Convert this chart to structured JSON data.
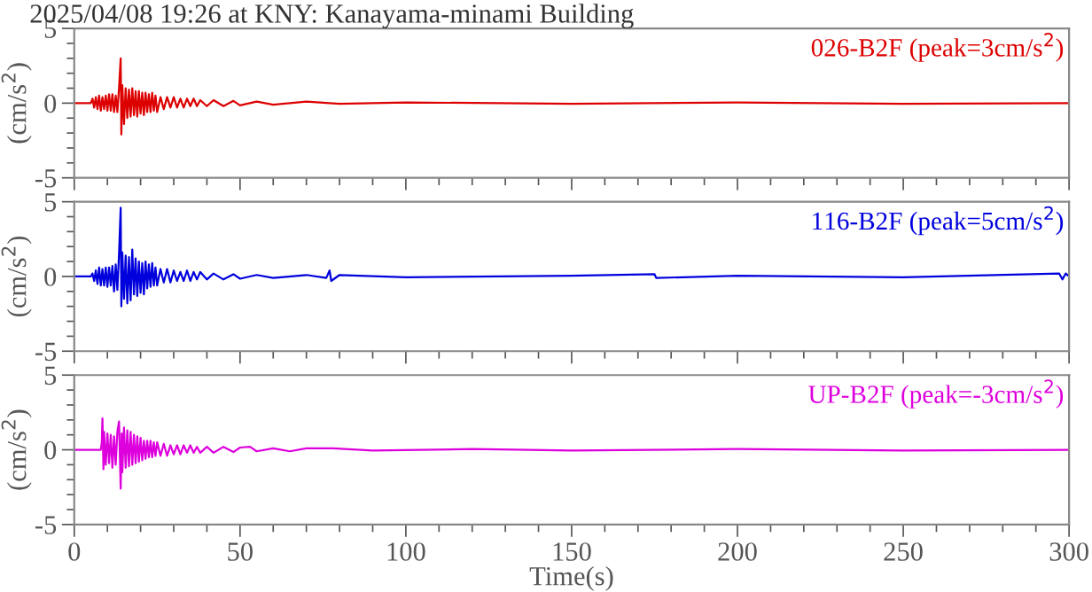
{
  "chart_data": [
    {
      "type": "line",
      "title": "2025/04/08 19:26 at KNY: Kanayama-minami Building",
      "ylabel": "(cm/s$^{2}$)",
      "xlim": [
        0,
        300
      ],
      "ylim": [
        -5,
        5
      ],
      "tick_labels": "y",
      "xticks": [
        0,
        {
          "value": 10,
          "label": null
        },
        {
          "value": 20,
          "label": null
        },
        {
          "value": 30,
          "label": null
        },
        {
          "value": 40,
          "label": null
        },
        50,
        {
          "value": 60,
          "label": null
        },
        {
          "value": 70,
          "label": null
        },
        {
          "value": 80,
          "label": null
        },
        {
          "value": 90,
          "label": null
        },
        100,
        {
          "value": 110,
          "label": null
        },
        {
          "value": 120,
          "label": null
        },
        {
          "value": 130,
          "label": null
        },
        {
          "value": 140,
          "label": null
        },
        150,
        {
          "value": 160,
          "label": null
        },
        {
          "value": 170,
          "label": null
        },
        {
          "value": 180,
          "label": null
        },
        {
          "value": 190,
          "label": null
        },
        200,
        {
          "value": 210,
          "label": null
        },
        {
          "value": 220,
          "label": null
        },
        {
          "value": 230,
          "label": null
        },
        {
          "value": 240,
          "label": null
        },
        250,
        {
          "value": 260,
          "label": null
        },
        {
          "value": 270,
          "label": null
        },
        {
          "value": 280,
          "label": null
        },
        {
          "value": 290,
          "label": null
        },
        300
      ],
      "yticks": [
        -5,
        {
          "value": -4,
          "label": null
        },
        {
          "value": -3,
          "label": null
        },
        {
          "value": -2,
          "label": null
        },
        {
          "value": -1,
          "label": null
        },
        0,
        {
          "value": 1,
          "label": null
        },
        {
          "value": 2,
          "label": null
        },
        {
          "value": 3,
          "label": null
        },
        {
          "value": 4,
          "label": null
        },
        5
      ],
      "series": [
        {
          "name": "026-B2F (peak=3cm/s$^{2}$)",
          "color": "#dd0000",
          "x": [
            0,
            5,
            5.5,
            6,
            6.5,
            7,
            7.5,
            8,
            8.5,
            9,
            9.5,
            10,
            10.5,
            11,
            11.5,
            12,
            12.5,
            13,
            13.5,
            14,
            14.2,
            14.5,
            15,
            15.5,
            16,
            16.5,
            17,
            17.5,
            18,
            18.5,
            19,
            19.5,
            20,
            20.5,
            21,
            21.5,
            22,
            22.5,
            23,
            23.5,
            24,
            24.5,
            25,
            26,
            27,
            28,
            29,
            30,
            31,
            32,
            33,
            34,
            35,
            36,
            37,
            38,
            40,
            42,
            45,
            48,
            50,
            55,
            60,
            70,
            80,
            100,
            150,
            200,
            250,
            300
          ],
          "values": [
            0,
            0,
            0.3,
            -0.3,
            0.4,
            -0.4,
            0.5,
            -0.5,
            0.4,
            -0.4,
            0.5,
            -0.5,
            0.6,
            -0.5,
            0.6,
            -0.6,
            0.5,
            -0.6,
            1.0,
            3.0,
            -2.1,
            1.2,
            -1.4,
            1.0,
            -1.0,
            0.9,
            -0.9,
            1.0,
            -0.8,
            0.8,
            -0.9,
            0.8,
            -0.7,
            0.7,
            -0.8,
            0.7,
            -0.6,
            0.6,
            -0.6,
            0.7,
            -0.5,
            0.5,
            -0.6,
            0.4,
            -0.4,
            0.4,
            -0.3,
            0.4,
            -0.3,
            0.3,
            -0.3,
            0.3,
            -0.2,
            0.3,
            -0.2,
            0.2,
            -0.2,
            0.2,
            -0.2,
            0.15,
            -0.15,
            0.1,
            -0.1,
            0.1,
            -0.05,
            0.05,
            -0.05,
            0.05,
            -0.05,
            0
          ]
        }
      ]
    },
    {
      "type": "line",
      "ylabel": "(cm/s$^{2}$)",
      "xlim": [
        0,
        300
      ],
      "ylim": [
        -5,
        5
      ],
      "tick_labels": "y",
      "xticks": [
        0,
        {
          "value": 10,
          "label": null
        },
        {
          "value": 20,
          "label": null
        },
        {
          "value": 30,
          "label": null
        },
        {
          "value": 40,
          "label": null
        },
        50,
        {
          "value": 60,
          "label": null
        },
        {
          "value": 70,
          "label": null
        },
        {
          "value": 80,
          "label": null
        },
        {
          "value": 90,
          "label": null
        },
        100,
        {
          "value": 110,
          "label": null
        },
        {
          "value": 120,
          "label": null
        },
        {
          "value": 130,
          "label": null
        },
        {
          "value": 140,
          "label": null
        },
        150,
        {
          "value": 160,
          "label": null
        },
        {
          "value": 170,
          "label": null
        },
        {
          "value": 180,
          "label": null
        },
        {
          "value": 190,
          "label": null
        },
        200,
        {
          "value": 210,
          "label": null
        },
        {
          "value": 220,
          "label": null
        },
        {
          "value": 230,
          "label": null
        },
        {
          "value": 240,
          "label": null
        },
        250,
        {
          "value": 260,
          "label": null
        },
        {
          "value": 270,
          "label": null
        },
        {
          "value": 280,
          "label": null
        },
        {
          "value": 290,
          "label": null
        },
        300
      ],
      "yticks": [
        -5,
        {
          "value": -4,
          "label": null
        },
        {
          "value": -3,
          "label": null
        },
        {
          "value": -2,
          "label": null
        },
        {
          "value": -1,
          "label": null
        },
        0,
        {
          "value": 1,
          "label": null
        },
        {
          "value": 2,
          "label": null
        },
        {
          "value": 3,
          "label": null
        },
        {
          "value": 4,
          "label": null
        },
        5
      ],
      "series": [
        {
          "name": "116-B2F (peak=5cm/s$^{2}$)",
          "color": "#0000dd",
          "x": [
            0,
            5,
            5.5,
            6,
            6.5,
            7,
            7.5,
            8,
            8.5,
            9,
            9.5,
            10,
            10.5,
            11,
            11.5,
            12,
            12.5,
            13,
            13.5,
            14,
            14.2,
            14.5,
            15,
            15.5,
            16,
            16.5,
            17,
            17.5,
            18,
            18.5,
            19,
            19.5,
            20,
            20.5,
            21,
            21.5,
            22,
            22.5,
            23,
            23.5,
            24,
            24.5,
            25,
            26,
            27,
            28,
            29,
            30,
            31,
            32,
            33,
            34,
            35,
            36,
            37,
            38,
            40,
            42,
            45,
            48,
            50,
            55,
            60,
            70,
            76,
            77,
            77.5,
            80,
            100,
            150,
            175,
            175.5,
            200,
            250,
            297,
            298,
            299,
            300
          ],
          "values": [
            0,
            0,
            0.2,
            -0.3,
            0.4,
            -0.5,
            0.6,
            -0.6,
            0.5,
            -0.6,
            0.6,
            -0.7,
            0.6,
            -0.6,
            0.7,
            -1.0,
            0.8,
            -0.9,
            1.5,
            4.6,
            -2.0,
            1.6,
            -1.5,
            1.4,
            -1.8,
            1.3,
            -1.6,
            1.8,
            -1.2,
            1.2,
            -1.3,
            1.0,
            -1.1,
            0.9,
            -1.2,
            1.0,
            -0.8,
            0.8,
            -0.7,
            0.9,
            -0.6,
            0.6,
            -0.6,
            0.5,
            -0.4,
            0.5,
            -0.4,
            0.4,
            -0.3,
            0.3,
            -0.3,
            0.4,
            -0.3,
            0.3,
            -0.2,
            0.3,
            -0.2,
            0.2,
            -0.2,
            0.15,
            -0.15,
            0.1,
            -0.1,
            0.1,
            -0.1,
            0.4,
            -0.3,
            0.1,
            -0.05,
            0.05,
            0.15,
            -0.1,
            0.05,
            -0.05,
            0.2,
            -0.2,
            0.2,
            0
          ]
        }
      ]
    },
    {
      "type": "line",
      "ylabel": "(cm/s$^{2}$)",
      "xlabel": "Time(s)",
      "xlim": [
        0,
        300
      ],
      "ylim": [
        -5,
        5
      ],
      "xticks": [
        0,
        {
          "value": 10,
          "label": null
        },
        {
          "value": 20,
          "label": null
        },
        {
          "value": 30,
          "label": null
        },
        {
          "value": 40,
          "label": null
        },
        50,
        {
          "value": 60,
          "label": null
        },
        {
          "value": 70,
          "label": null
        },
        {
          "value": 80,
          "label": null
        },
        {
          "value": 90,
          "label": null
        },
        100,
        {
          "value": 110,
          "label": null
        },
        {
          "value": 120,
          "label": null
        },
        {
          "value": 130,
          "label": null
        },
        {
          "value": 140,
          "label": null
        },
        150,
        {
          "value": 160,
          "label": null
        },
        {
          "value": 170,
          "label": null
        },
        {
          "value": 180,
          "label": null
        },
        {
          "value": 190,
          "label": null
        },
        200,
        {
          "value": 210,
          "label": null
        },
        {
          "value": 220,
          "label": null
        },
        {
          "value": 230,
          "label": null
        },
        {
          "value": 240,
          "label": null
        },
        250,
        {
          "value": 260,
          "label": null
        },
        {
          "value": 270,
          "label": null
        },
        {
          "value": 280,
          "label": null
        },
        {
          "value": 290,
          "label": null
        },
        300
      ],
      "yticks": [
        -5,
        {
          "value": -4,
          "label": null
        },
        {
          "value": -3,
          "label": null
        },
        {
          "value": -2,
          "label": null
        },
        {
          "value": -1,
          "label": null
        },
        0,
        {
          "value": 1,
          "label": null
        },
        {
          "value": 2,
          "label": null
        },
        {
          "value": 3,
          "label": null
        },
        {
          "value": 4,
          "label": null
        },
        5
      ],
      "series": [
        {
          "name": "UP-B2F (peak=-3cm/s$^{2}$)",
          "color": "#dd00dd",
          "x": [
            0,
            8,
            8.3,
            8.5,
            8.8,
            9,
            9.5,
            10,
            10.5,
            11,
            11.5,
            12,
            12.5,
            13,
            13.5,
            14,
            14.3,
            14.5,
            15,
            15.5,
            16,
            16.5,
            17,
            17.5,
            18,
            18.5,
            19,
            19.5,
            20,
            20.5,
            21,
            21.5,
            22,
            22.5,
            23,
            23.5,
            24,
            24.5,
            25,
            26,
            27,
            28,
            29,
            30,
            31,
            32,
            33,
            34,
            35,
            36,
            37,
            38,
            40,
            42,
            45,
            48,
            50,
            53,
            55,
            60,
            65,
            70,
            78,
            90,
            120,
            150,
            200,
            250,
            300
          ],
          "values": [
            0,
            0,
            0.5,
            2.1,
            -1.3,
            1.2,
            -1.0,
            1.1,
            -0.9,
            1.0,
            -1.2,
            0.9,
            -1.0,
            1.2,
            1.9,
            -2.6,
            1.1,
            -1.5,
            1.5,
            -1.2,
            1.3,
            -1.1,
            1.2,
            -1.0,
            1.0,
            -0.9,
            0.9,
            -0.8,
            0.8,
            -0.7,
            0.6,
            -0.6,
            0.6,
            -0.5,
            0.6,
            -0.5,
            0.5,
            -0.4,
            0.5,
            -0.4,
            0.4,
            -0.4,
            0.3,
            -0.3,
            0.3,
            -0.3,
            0.3,
            -0.2,
            0.3,
            -0.2,
            0.2,
            -0.2,
            0.2,
            -0.2,
            0.2,
            -0.15,
            0.15,
            0.2,
            -0.1,
            0.1,
            -0.1,
            0.1,
            0.1,
            -0.05,
            0.05,
            -0.05,
            0.05,
            -0.05,
            0
          ]
        }
      ]
    }
  ]
}
